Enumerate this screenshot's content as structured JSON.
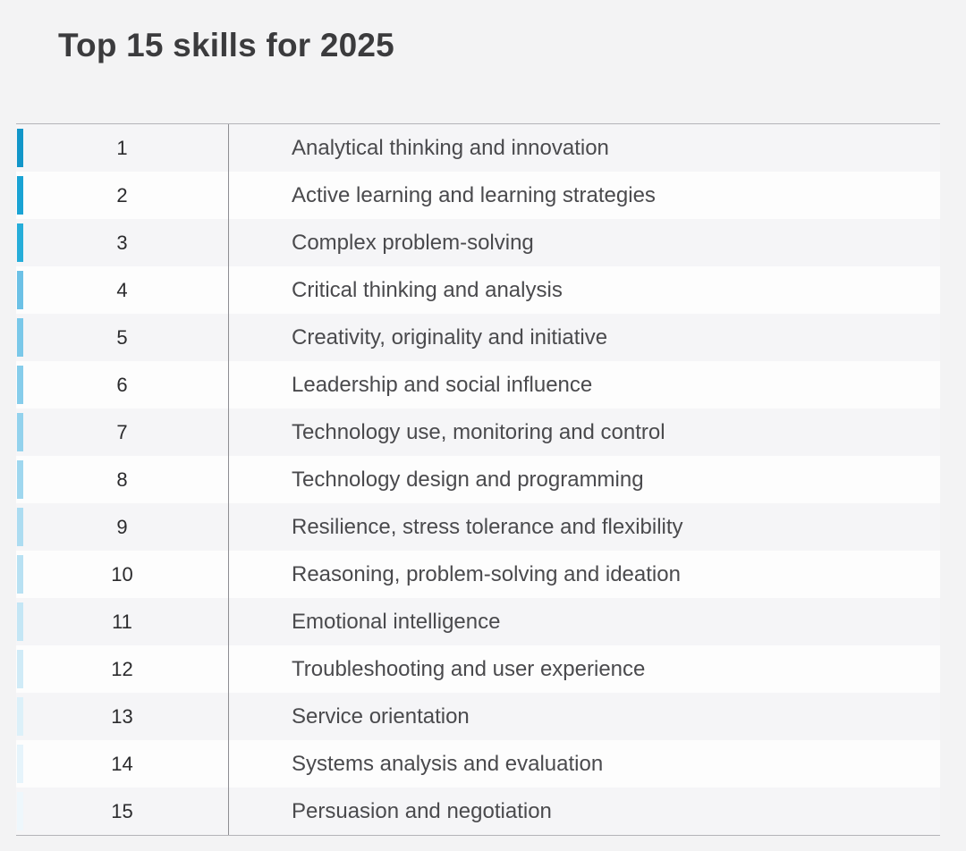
{
  "title": "Top 15 skills for 2025",
  "skills": [
    {
      "rank": "1",
      "name": "Analytical thinking and innovation",
      "color": "#1296c9"
    },
    {
      "rank": "2",
      "name": "Active learning and learning strategies",
      "color": "#1aa3d4"
    },
    {
      "rank": "3",
      "name": "Complex problem-solving",
      "color": "#26add9"
    },
    {
      "rank": "4",
      "name": "Critical thinking and analysis",
      "color": "#6cc1e6"
    },
    {
      "rank": "5",
      "name": "Creativity, originality and initiative",
      "color": "#7ac8e9"
    },
    {
      "rank": "6",
      "name": "Leadership and social influence",
      "color": "#86cdeb"
    },
    {
      "rank": "7",
      "name": "Technology use, monitoring and control",
      "color": "#93d2ed"
    },
    {
      "rank": "8",
      "name": "Technology design and programming",
      "color": "#9fd7ef"
    },
    {
      "rank": "9",
      "name": "Resilience, stress tolerance and flexibility",
      "color": "#acdcf1"
    },
    {
      "rank": "10",
      "name": "Reasoning, problem-solving and ideation",
      "color": "#b8e1f3"
    },
    {
      "rank": "11",
      "name": "Emotional intelligence",
      "color": "#c4e6f5"
    },
    {
      "rank": "12",
      "name": "Troubleshooting and user experience",
      "color": "#d0ebf7"
    },
    {
      "rank": "13",
      "name": "Service orientation",
      "color": "#dcf0f9"
    },
    {
      "rank": "14",
      "name": "Systems analysis and evaluation",
      "color": "#e6f4fb"
    },
    {
      "rank": "15",
      "name": "Persuasion and negotiation",
      "color": "#eef7fc"
    }
  ]
}
